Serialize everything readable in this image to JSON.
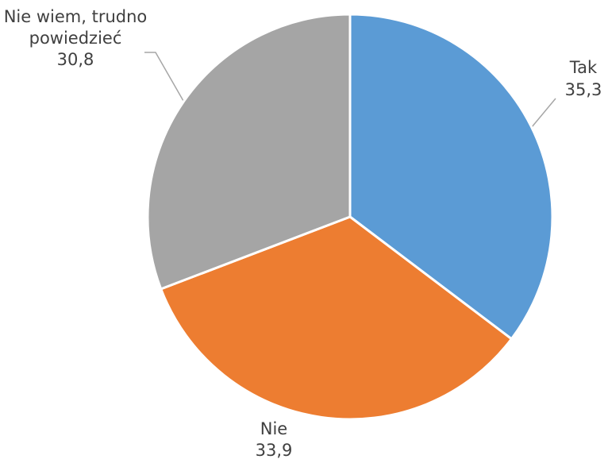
{
  "chart_data": {
    "type": "pie",
    "categories": [
      "Tak",
      "Nie",
      "Nie wiem, trudno powiedzieć"
    ],
    "values": [
      35.3,
      33.9,
      30.8
    ],
    "value_labels": [
      "35,3",
      "33,9",
      "30,8"
    ],
    "colors": [
      "#5b9bd5",
      "#ed7d31",
      "#a5a5a5"
    ]
  }
}
